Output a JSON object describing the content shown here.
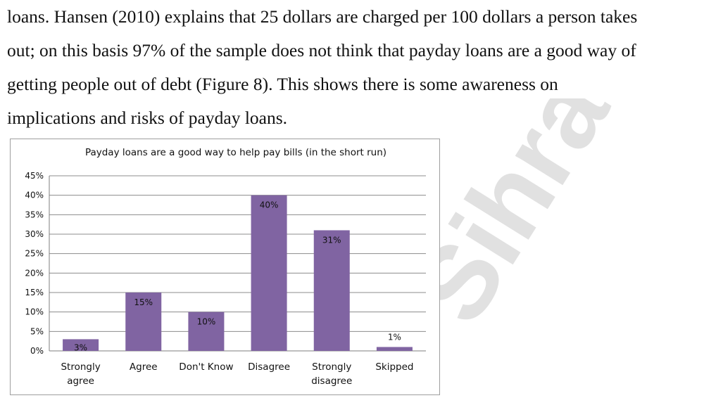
{
  "document": {
    "lines": [
      "loans. Hansen (2010) explains that 25 dollars are charged per 100 dollars a person takes",
      "out; on this basis 97% of the sample does not think that payday loans are a good way of",
      "getting people out of debt (Figure 8).  This shows there is some awareness on",
      "implications and risks of payday loans."
    ]
  },
  "watermark": {
    "text": "Sihra"
  },
  "chart_data": {
    "type": "bar",
    "title": "Payday loans are a good way to help pay bills (in the short run)",
    "categories": [
      "Strongly agree",
      "Agree",
      "Don't Know",
      "Disagree",
      "Strongly disagree",
      "Skipped"
    ],
    "category_lines": [
      [
        "Strongly",
        "agree"
      ],
      [
        "Agree"
      ],
      [
        "Don't Know"
      ],
      [
        "Disagree"
      ],
      [
        "Strongly",
        "disagree"
      ],
      [
        "Skipped"
      ]
    ],
    "values": [
      3,
      15,
      10,
      40,
      31,
      1
    ],
    "data_labels": [
      "3%",
      "15%",
      "10%",
      "40%",
      "31%",
      "1%"
    ],
    "yticks": [
      "0%",
      "5%",
      "10%",
      "15%",
      "20%",
      "25%",
      "30%",
      "35%",
      "40%",
      "45%"
    ],
    "ylim": [
      0,
      45
    ],
    "bar_color": "#8064a2",
    "grid": true,
    "legend": "none",
    "xlabel": "",
    "ylabel": ""
  }
}
